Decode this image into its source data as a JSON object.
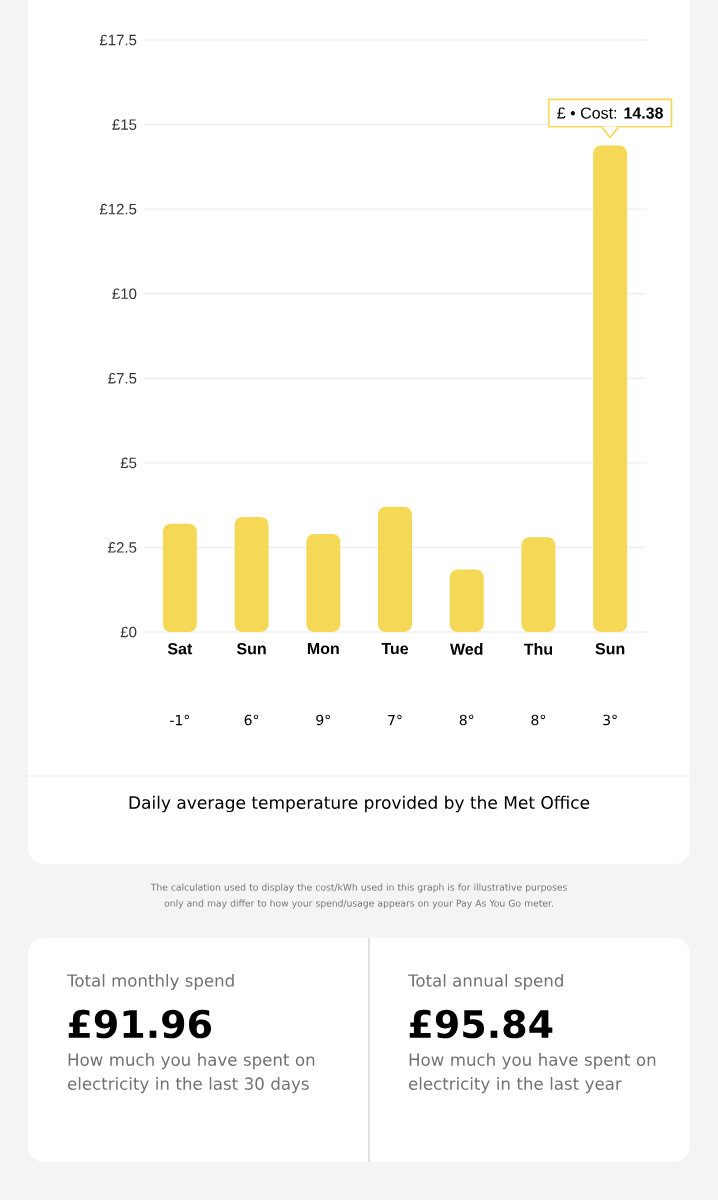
{
  "chart_data": [
    {
      "type": "bar",
      "categories": [
        "Sat",
        "Sun",
        "Mon",
        "Tue",
        "Wed",
        "Thu",
        "Sun"
      ],
      "values": [
        3.2,
        3.4,
        2.9,
        3.7,
        1.85,
        2.8,
        14.38
      ],
      "value_labels": [
        null,
        null,
        null,
        null,
        null,
        null,
        "£ • Cost: **14.38**"
      ],
      "color": "#f5d855",
      "ylim": [
        0,
        17.5
      ],
      "yticks": [
        {
          "value": 0,
          "label": "£0"
        },
        {
          "value": 2.5,
          "label": "£2.5"
        },
        {
          "value": 5,
          "label": "£5"
        },
        {
          "value": 7.5,
          "label": "£7.5"
        },
        {
          "value": 10,
          "label": "£10"
        },
        {
          "value": 12.5,
          "label": "£12.5"
        },
        {
          "value": 15,
          "label": "£15"
        },
        {
          "value": 17.5,
          "label": "£17.5"
        }
      ],
      "grid": "y",
      "annotations": [
        "-1°",
        "6°",
        "9°",
        "7°",
        "8°",
        "8°",
        "3°",
        "Daily average temperature provided by the Met Office",
        "The calculation used to display the cost/kWh used in this graph is for illustrative purposes only and may differ to how your spend/usage appears on your Pay As You Go meter."
      ]
    },
    {
      "type": "other",
      "annotations": [
        "Total monthly spend",
        "£91.96",
        "How much you have spent on electricity in the last 30 days",
        "Total annual spend",
        "£95.84",
        "How much you have spent on electricity in the last year"
      ]
    }
  ]
}
